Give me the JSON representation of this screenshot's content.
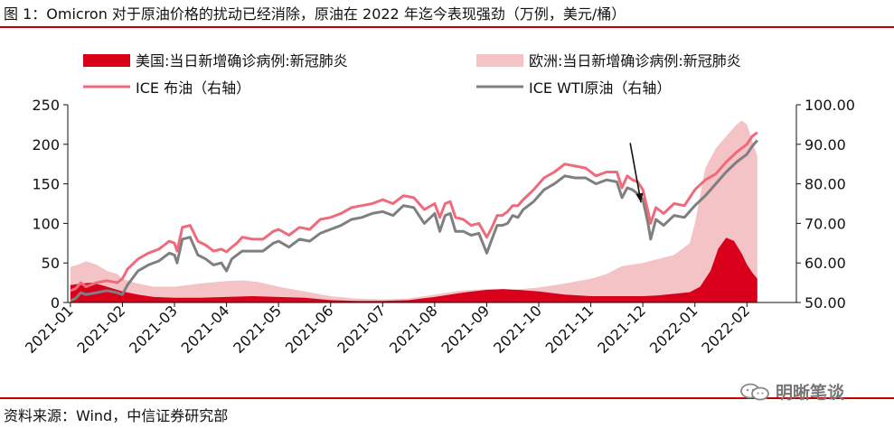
{
  "header": {
    "title": "图 1：Omicron 对于原油价格的扰动已经消除，原油在 2022 年迄今表现强劲（万例，美元/桶）"
  },
  "footer": {
    "source": "资料来源：Wind，中信证券研究部",
    "watermark": "明晰笔谈"
  },
  "colors": {
    "us_cases": "#d9001b",
    "eu_cases": "#f4c3c6",
    "brent": "#ef6a7a",
    "wti": "#7f7f7f",
    "rule": "#c00000",
    "arrow": "#111111"
  },
  "chart_data": {
    "type": "area",
    "title": "",
    "x_categories": [
      "2021-01",
      "2021-02",
      "2021-03",
      "2021-04",
      "2021-05",
      "2021-06",
      "2021-07",
      "2021-08",
      "2021-09",
      "2021-10",
      "2021-11",
      "2021-12",
      "2022-01",
      "2022-02"
    ],
    "y_left": {
      "label": "",
      "min": 0,
      "max": 250,
      "ticks": [
        "0",
        "50",
        "100",
        "150",
        "200",
        "250"
      ]
    },
    "y_right": {
      "label": "",
      "min": 50,
      "max": 100,
      "ticks": [
        "50.00",
        "60.00",
        "70.00",
        "80.00",
        "90.00",
        "100.00"
      ]
    },
    "legend_placement": "top",
    "series": [
      {
        "name": "欧洲:当日新增确诊病例:新冠肺炎",
        "type": "area",
        "axis": "left",
        "x": [
          0,
          0.15,
          0.3,
          0.5,
          0.7,
          0.9,
          1.0,
          1.3,
          1.6,
          2.0,
          2.5,
          3.0,
          3.3,
          3.6,
          4.0,
          4.5,
          5.0,
          5.5,
          6.0,
          6.5,
          7.0,
          7.5,
          8.0,
          8.5,
          9.0,
          9.5,
          10.0,
          10.3,
          10.6,
          11.0,
          11.3,
          11.6,
          11.9,
          12.0,
          12.2,
          12.4,
          12.6,
          12.8,
          12.9,
          13.0,
          13.1,
          13.2
        ],
        "values": [
          45,
          48,
          52,
          48,
          40,
          36,
          30,
          24,
          20,
          20,
          24,
          27,
          28,
          26,
          20,
          14,
          8,
          5,
          4,
          5,
          10,
          15,
          17,
          16,
          19,
          24,
          30,
          36,
          46,
          50,
          55,
          60,
          75,
          100,
          170,
          195,
          210,
          225,
          230,
          225,
          205,
          185
        ]
      },
      {
        "name": "美国:当日新增确诊病例:新冠肺炎",
        "type": "area",
        "axis": "left",
        "x": [
          0,
          0.2,
          0.4,
          0.6,
          0.8,
          1.0,
          1.3,
          1.6,
          2.0,
          2.5,
          3.0,
          3.5,
          4.0,
          4.5,
          5.0,
          5.5,
          6.0,
          6.5,
          7.0,
          7.3,
          7.6,
          8.0,
          8.3,
          8.6,
          9.0,
          9.5,
          10.0,
          10.5,
          11.0,
          11.3,
          11.6,
          11.9,
          12.1,
          12.3,
          12.45,
          12.6,
          12.75,
          12.9,
          13.0,
          13.1,
          13.2
        ],
        "values": [
          22,
          24,
          25,
          22,
          18,
          14,
          10,
          7,
          6,
          6,
          7,
          8,
          7,
          6,
          3,
          2,
          2,
          3,
          7,
          10,
          13,
          16,
          17,
          16,
          14,
          10,
          8,
          8,
          8,
          9,
          11,
          13,
          20,
          40,
          68,
          82,
          78,
          62,
          48,
          38,
          30
        ]
      },
      {
        "name": "ICE 布油（右轴）",
        "type": "line",
        "axis": "right",
        "x": [
          0,
          0.1,
          0.2,
          0.3,
          0.5,
          0.7,
          0.9,
          1.0,
          1.1,
          1.3,
          1.5,
          1.7,
          1.9,
          2.0,
          2.05,
          2.15,
          2.3,
          2.45,
          2.6,
          2.75,
          2.9,
          3.0,
          3.1,
          3.2,
          3.3,
          3.5,
          3.7,
          3.9,
          4.0,
          4.2,
          4.4,
          4.6,
          4.8,
          5.0,
          5.2,
          5.4,
          5.6,
          5.8,
          6.0,
          6.2,
          6.4,
          6.6,
          6.8,
          7.0,
          7.1,
          7.2,
          7.3,
          7.4,
          7.55,
          7.7,
          7.85,
          8.0,
          8.1,
          8.2,
          8.3,
          8.4,
          8.5,
          8.6,
          8.7,
          8.9,
          9.1,
          9.3,
          9.5,
          9.7,
          9.9,
          10.1,
          10.3,
          10.5,
          10.6,
          10.7,
          10.8,
          10.9,
          11.0,
          11.1,
          11.15,
          11.25,
          11.4,
          11.6,
          11.8,
          12.0,
          12.2,
          12.4,
          12.6,
          12.8,
          13.0,
          13.1,
          13.2
        ],
        "values": [
          53,
          53.5,
          55,
          54,
          55,
          55.5,
          55,
          56,
          58.5,
          61,
          62.5,
          63.5,
          65.5,
          65,
          63,
          69,
          69.5,
          65.5,
          64.5,
          63,
          63.5,
          62.8,
          64,
          65,
          66.5,
          66,
          66,
          68,
          68.5,
          67,
          69,
          68.5,
          71,
          71.5,
          72.5,
          74,
          74.5,
          75,
          76,
          75,
          77,
          76.5,
          73.5,
          75,
          71.5,
          75,
          75.5,
          71.5,
          71,
          69.5,
          70,
          66.5,
          69,
          72,
          72,
          73,
          74.5,
          74.5,
          76,
          78.5,
          81.5,
          83,
          85,
          84.5,
          84,
          82,
          83,
          83,
          79,
          82,
          81,
          80.5,
          78.5,
          73,
          70,
          74,
          72.5,
          75,
          74.5,
          78.5,
          81,
          82.5,
          85.5,
          88,
          90,
          92,
          93
        ]
      },
      {
        "name": "ICE WTI原油（右轴）",
        "type": "line",
        "axis": "right",
        "x": [
          0,
          0.1,
          0.2,
          0.3,
          0.5,
          0.7,
          0.9,
          1.0,
          1.1,
          1.3,
          1.5,
          1.7,
          1.9,
          2.0,
          2.05,
          2.15,
          2.3,
          2.45,
          2.6,
          2.75,
          2.9,
          3.0,
          3.1,
          3.2,
          3.3,
          3.5,
          3.7,
          3.9,
          4.0,
          4.2,
          4.4,
          4.6,
          4.8,
          5.0,
          5.2,
          5.4,
          5.6,
          5.8,
          6.0,
          6.2,
          6.4,
          6.6,
          6.8,
          7.0,
          7.1,
          7.2,
          7.3,
          7.4,
          7.55,
          7.7,
          7.85,
          8.0,
          8.1,
          8.2,
          8.3,
          8.4,
          8.5,
          8.6,
          8.7,
          8.9,
          9.1,
          9.3,
          9.5,
          9.7,
          9.9,
          10.1,
          10.3,
          10.5,
          10.6,
          10.7,
          10.8,
          10.9,
          11.0,
          11.1,
          11.15,
          11.25,
          11.4,
          11.6,
          11.8,
          12.0,
          12.2,
          12.4,
          12.6,
          12.8,
          13.0,
          13.1,
          13.2
        ],
        "values": [
          50.5,
          51,
          52.5,
          52,
          52.5,
          53,
          52.5,
          52,
          54.5,
          58,
          59.5,
          60.5,
          62.5,
          62,
          60,
          66,
          66.5,
          62,
          61,
          59.5,
          60,
          58,
          61,
          62,
          63,
          63,
          63,
          65,
          65.5,
          64,
          66,
          65.5,
          67.5,
          68.5,
          69.5,
          71,
          71.5,
          72.5,
          73,
          72,
          74.5,
          74,
          70,
          72.5,
          68,
          72,
          72.5,
          68,
          68,
          67,
          67.5,
          62.5,
          66,
          69.5,
          69.5,
          70,
          72,
          71.5,
          73.5,
          75.5,
          78.5,
          80,
          82,
          81.5,
          81.5,
          80,
          81,
          80.5,
          76.5,
          79,
          78.5,
          77.5,
          76,
          70,
          66,
          71,
          69.5,
          72,
          71.5,
          74.5,
          77,
          80,
          83,
          85.5,
          87.5,
          89.5,
          91
        ]
      }
    ],
    "annotations": [
      {
        "type": "arrow",
        "label": "",
        "points_to": {
          "x": 11.0,
          "axis": "right",
          "y": 78
        }
      }
    ]
  }
}
